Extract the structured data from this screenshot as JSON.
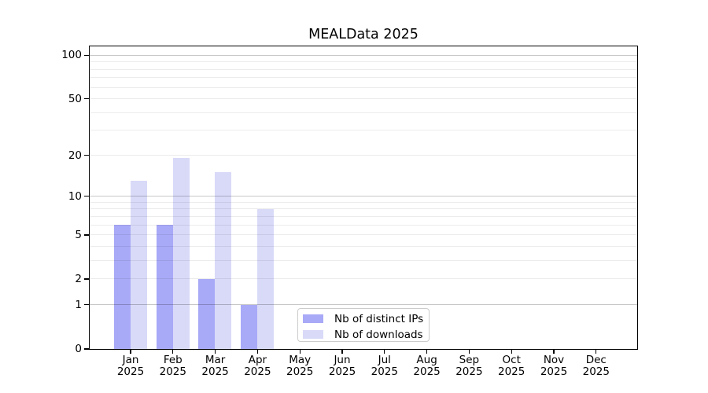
{
  "chart_data": {
    "type": "bar",
    "title": "MEALData 2025",
    "x_tick_year": "2025",
    "categories": [
      "Jan",
      "Feb",
      "Mar",
      "Apr",
      "May",
      "Jun",
      "Jul",
      "Aug",
      "Sep",
      "Oct",
      "Nov",
      "Dec"
    ],
    "series": [
      {
        "name": "Nb of distinct IPs",
        "color": "#a8a9f7",
        "values": [
          6,
          6,
          2,
          1,
          0,
          0,
          0,
          0,
          0,
          0,
          0,
          0
        ]
      },
      {
        "name": "Nb of downloads",
        "color": "#d9daf8",
        "values": [
          13,
          19,
          15,
          8,
          0,
          0,
          0,
          0,
          0,
          0,
          0,
          0
        ]
      }
    ],
    "y_axis": {
      "scale": "symlog",
      "tick_values": [
        0,
        1,
        2,
        5,
        10,
        20,
        50,
        100
      ],
      "tick_labels": [
        "0",
        "1",
        "2",
        "5",
        "10",
        "20",
        "50",
        "100"
      ],
      "emphasized_gridlines": [
        1,
        10,
        100
      ],
      "minor_gridlines": [
        3,
        4,
        6,
        7,
        8,
        9,
        30,
        40,
        60,
        70,
        80,
        90
      ],
      "ylim": [
        0,
        115
      ]
    },
    "grid": "horizontal",
    "legend_position": "lower center, inside plot"
  }
}
